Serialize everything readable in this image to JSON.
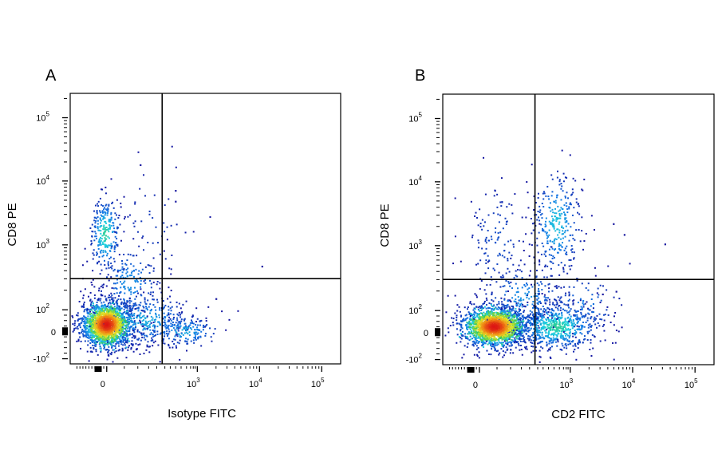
{
  "chart_data": [
    {
      "type": "scatter",
      "panel_label": "A",
      "xlabel": "Isotype FITC",
      "ylabel": "CD8 PE",
      "x_scale": "biexponential",
      "y_scale": "biexponential",
      "x_ticks": [
        {
          "value": 0,
          "base": "0",
          "exp": ""
        },
        {
          "value": 1000,
          "base": "10",
          "exp": "3"
        },
        {
          "value": 10000,
          "base": "10",
          "exp": "4"
        },
        {
          "value": 100000,
          "base": "10",
          "exp": "5"
        }
      ],
      "y_ticks": [
        {
          "value": 100000,
          "base": "10",
          "exp": "5"
        },
        {
          "value": 10000,
          "base": "10",
          "exp": "4"
        },
        {
          "value": 1000,
          "base": "10",
          "exp": "3"
        },
        {
          "value": 100,
          "base": "10",
          "exp": "2"
        },
        {
          "value": 0,
          "base": "0",
          "exp": ""
        },
        {
          "value": -100,
          "base": "-10",
          "exp": "2"
        }
      ],
      "quadrant_gate": {
        "x": 500,
        "y": 300
      },
      "color_scale": "density (blue → cyan → green → yellow → red)",
      "populations": [
        {
          "x": 0,
          "y": 0,
          "note": "dense double-negative cluster"
        },
        {
          "x": 0,
          "y": 2000,
          "note": "CD8+ cluster"
        },
        {
          "x": 600,
          "y": 10,
          "note": "scattered FITC low events"
        }
      ]
    },
    {
      "type": "scatter",
      "panel_label": "B",
      "xlabel": "CD2 FITC",
      "ylabel": "CD8 PE",
      "x_scale": "biexponential",
      "y_scale": "biexponential",
      "x_ticks": [
        {
          "value": 0,
          "base": "0",
          "exp": ""
        },
        {
          "value": 1000,
          "base": "10",
          "exp": "3"
        },
        {
          "value": 10000,
          "base": "10",
          "exp": "4"
        },
        {
          "value": 100000,
          "base": "10",
          "exp": "5"
        }
      ],
      "y_ticks": [
        {
          "value": 100000,
          "base": "10",
          "exp": "5"
        },
        {
          "value": 10000,
          "base": "10",
          "exp": "4"
        },
        {
          "value": 1000,
          "base": "10",
          "exp": "3"
        },
        {
          "value": 100,
          "base": "10",
          "exp": "2"
        },
        {
          "value": 0,
          "base": "0",
          "exp": ""
        },
        {
          "value": -100,
          "base": "-10",
          "exp": "2"
        }
      ],
      "quadrant_gate": {
        "x": 500,
        "y": 300
      },
      "color_scale": "density (blue → cyan → green → yellow → red)",
      "populations": [
        {
          "x": 100,
          "y": 0,
          "note": "dense double-negative cluster"
        },
        {
          "x": 1000,
          "y": 2000,
          "note": "CD2+ CD8+ cluster"
        },
        {
          "x": 800,
          "y": 10,
          "note": "CD2+ CD8- events"
        }
      ]
    }
  ]
}
